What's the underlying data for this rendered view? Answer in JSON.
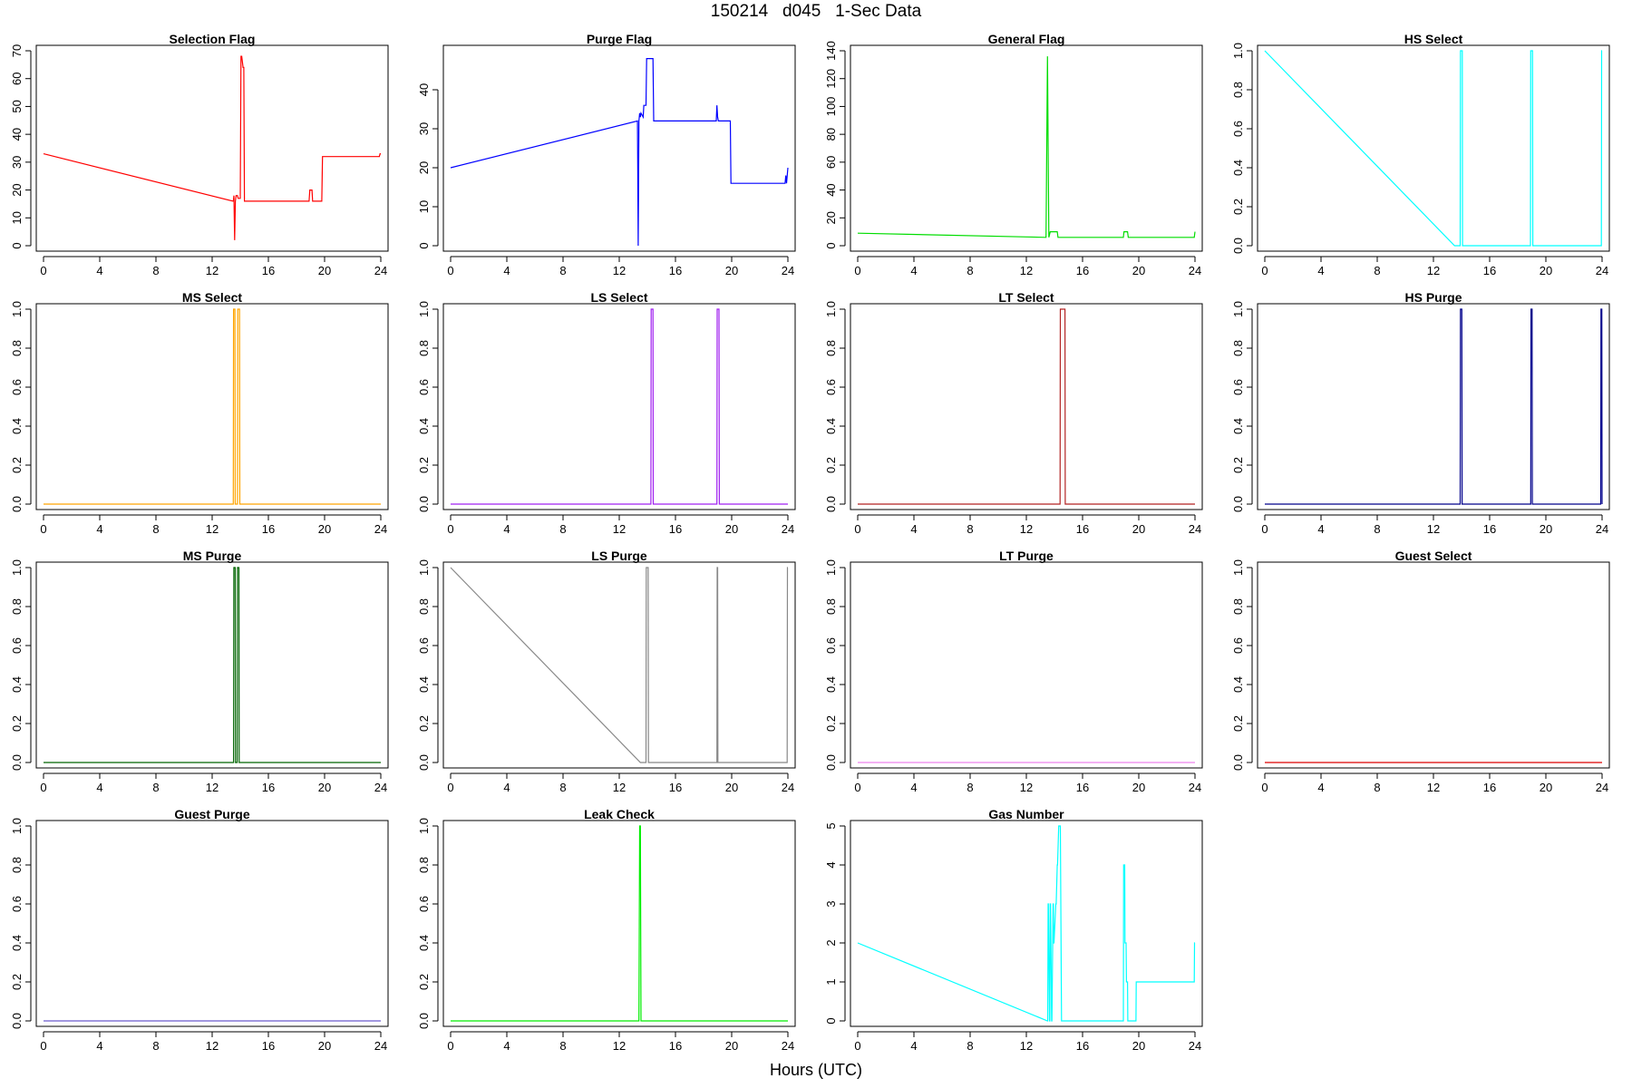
{
  "main_title": "150214   d045   1-Sec Data",
  "xlabel": "Hours (UTC)",
  "chart_data": [
    {
      "type": "line",
      "title": "Selection Flag",
      "color": "#ff0000",
      "xlim": [
        0,
        24
      ],
      "ylim": [
        0,
        70
      ],
      "xticks": [
        0,
        4,
        8,
        12,
        16,
        20,
        24
      ],
      "yticks": [
        0,
        10,
        20,
        30,
        40,
        50,
        60,
        70
      ],
      "x": [
        0,
        13.5,
        13.55,
        13.6,
        13.65,
        13.7,
        13.8,
        13.85,
        14.0,
        14.05,
        14.1,
        14.2,
        14.25,
        14.3,
        18.9,
        18.95,
        19.1,
        19.15,
        19.8,
        19.85,
        23.9,
        23.95,
        24
      ],
      "y": [
        33,
        16,
        18,
        2,
        16,
        18,
        18,
        17,
        17,
        68,
        68,
        64,
        64,
        16,
        16,
        20,
        20,
        16,
        16,
        32,
        32,
        33,
        33
      ]
    },
    {
      "type": "line",
      "title": "Purge Flag",
      "color": "#0000ff",
      "xlim": [
        0,
        24
      ],
      "ylim": [
        0,
        50
      ],
      "xticks": [
        0,
        4,
        8,
        12,
        16,
        20,
        24
      ],
      "yticks": [
        0,
        10,
        20,
        30,
        40
      ],
      "x": [
        0,
        13.3,
        13.35,
        13.4,
        13.45,
        13.5,
        13.55,
        13.7,
        13.75,
        13.8,
        13.9,
        13.95,
        14.0,
        14.05,
        14.4,
        14.45,
        18.9,
        18.95,
        19.0,
        19.05,
        19.1,
        19.9,
        19.95,
        23.8,
        23.85,
        23.9,
        24
      ],
      "y": [
        20,
        32,
        0,
        32,
        34,
        33,
        34,
        33,
        36,
        36,
        36,
        48,
        48,
        48,
        48,
        32,
        32,
        36,
        33,
        32,
        32,
        32,
        16,
        16,
        18,
        16,
        20
      ]
    },
    {
      "type": "line",
      "title": "General Flag",
      "color": "#00dd00",
      "xlim": [
        0,
        24
      ],
      "ylim": [
        0,
        140
      ],
      "xticks": [
        0,
        4,
        8,
        12,
        16,
        20,
        24
      ],
      "yticks": [
        0,
        20,
        40,
        60,
        80,
        100,
        120,
        140
      ],
      "x": [
        0,
        13.4,
        13.5,
        13.6,
        13.7,
        13.75,
        14.2,
        14.25,
        18.9,
        18.95,
        19.2,
        19.25,
        23.95,
        24
      ],
      "y": [
        9,
        6,
        136,
        6,
        10,
        10,
        10,
        6,
        6,
        10,
        10,
        6,
        6,
        10
      ]
    },
    {
      "type": "line",
      "title": "HS Select",
      "color": "#00ffff",
      "xlim": [
        0,
        24
      ],
      "ylim": [
        0,
        1
      ],
      "xticks": [
        0,
        4,
        8,
        12,
        16,
        20,
        24
      ],
      "yticks": [
        0.0,
        0.2,
        0.4,
        0.6,
        0.8,
        1.0
      ],
      "x": [
        0,
        13.5,
        13.9,
        13.92,
        14.05,
        14.07,
        18.9,
        18.92,
        19.05,
        19.07,
        23.95,
        23.97,
        24
      ],
      "y": [
        1,
        0,
        0,
        1,
        1,
        0,
        0,
        1,
        1,
        0,
        0,
        1,
        1
      ]
    },
    {
      "type": "line",
      "title": "MS Select",
      "color": "#ffa500",
      "xlim": [
        0,
        24
      ],
      "ylim": [
        0,
        1
      ],
      "xticks": [
        0,
        4,
        8,
        12,
        16,
        20,
        24
      ],
      "yticks": [
        0.0,
        0.2,
        0.4,
        0.6,
        0.8,
        1.0
      ],
      "x": [
        0,
        13.5,
        13.52,
        13.62,
        13.64,
        13.8,
        13.82,
        13.95,
        13.97,
        24
      ],
      "y": [
        0,
        0,
        1,
        1,
        0,
        0,
        1,
        1,
        0,
        0
      ]
    },
    {
      "type": "line",
      "title": "LS Select",
      "color": "#a020f0",
      "xlim": [
        0,
        24
      ],
      "ylim": [
        0,
        1
      ],
      "xticks": [
        0,
        4,
        8,
        12,
        16,
        20,
        24
      ],
      "yticks": [
        0.0,
        0.2,
        0.4,
        0.6,
        0.8,
        1.0
      ],
      "x": [
        0,
        14.25,
        14.27,
        14.4,
        14.42,
        18.95,
        18.97,
        19.1,
        19.12,
        24
      ],
      "y": [
        0,
        0,
        1,
        1,
        0,
        0,
        1,
        1,
        0,
        0
      ]
    },
    {
      "type": "line",
      "title": "LT Select",
      "color": "#b22222",
      "xlim": [
        0,
        24
      ],
      "ylim": [
        0,
        1
      ],
      "xticks": [
        0,
        4,
        8,
        12,
        16,
        20,
        24
      ],
      "yticks": [
        0.0,
        0.2,
        0.4,
        0.6,
        0.8,
        1.0
      ],
      "x": [
        0,
        14.4,
        14.42,
        14.75,
        14.77,
        24
      ],
      "y": [
        0,
        0,
        1,
        1,
        0,
        0
      ]
    },
    {
      "type": "line",
      "title": "HS Purge",
      "color": "#00008b",
      "xlim": [
        0,
        24
      ],
      "ylim": [
        0,
        1
      ],
      "xticks": [
        0,
        4,
        8,
        12,
        16,
        20,
        24
      ],
      "yticks": [
        0.0,
        0.2,
        0.4,
        0.6,
        0.8,
        1.0
      ],
      "x": [
        0,
        13.9,
        13.92,
        14.02,
        14.04,
        18.92,
        18.94,
        19.02,
        19.04,
        23.9,
        23.92,
        23.98,
        24
      ],
      "y": [
        0,
        0,
        1,
        1,
        0,
        0,
        1,
        1,
        0,
        0,
        1,
        1,
        0
      ]
    },
    {
      "type": "line",
      "title": "MS Purge",
      "color": "#006400",
      "xlim": [
        0,
        24
      ],
      "ylim": [
        0,
        1
      ],
      "xticks": [
        0,
        4,
        8,
        12,
        16,
        20,
        24
      ],
      "yticks": [
        0.0,
        0.2,
        0.4,
        0.6,
        0.8,
        1.0
      ],
      "x": [
        0,
        13.52,
        13.54,
        13.64,
        13.66,
        13.78,
        13.8,
        13.9,
        13.92,
        24
      ],
      "y": [
        0,
        0,
        1,
        1,
        0,
        0,
        1,
        1,
        0,
        0
      ]
    },
    {
      "type": "line",
      "title": "LS Purge",
      "color": "#888888",
      "xlim": [
        0,
        24
      ],
      "ylim": [
        0,
        1
      ],
      "xticks": [
        0,
        4,
        8,
        12,
        16,
        20,
        24
      ],
      "yticks": [
        0.0,
        0.2,
        0.4,
        0.6,
        0.8,
        1.0
      ],
      "x": [
        0,
        13.5,
        13.9,
        13.92,
        14.06,
        14.08,
        18.95,
        18.97,
        19.0,
        19.02,
        23.95,
        23.97,
        24
      ],
      "y": [
        1,
        0,
        0,
        1,
        1,
        0,
        0,
        1,
        1,
        0,
        0,
        1,
        1
      ]
    },
    {
      "type": "line",
      "title": "LT Purge",
      "color": "#ee82ee",
      "xlim": [
        0,
        24
      ],
      "ylim": [
        0,
        1
      ],
      "xticks": [
        0,
        4,
        8,
        12,
        16,
        20,
        24
      ],
      "yticks": [
        0.0,
        0.2,
        0.4,
        0.6,
        0.8,
        1.0
      ],
      "x": [
        0,
        24
      ],
      "y": [
        0,
        0
      ]
    },
    {
      "type": "line",
      "title": "Guest Select",
      "color": "#dd0000",
      "xlim": [
        0,
        24
      ],
      "ylim": [
        0,
        1
      ],
      "xticks": [
        0,
        4,
        8,
        12,
        16,
        20,
        24
      ],
      "yticks": [
        0.0,
        0.2,
        0.4,
        0.6,
        0.8,
        1.0
      ],
      "x": [
        0,
        24
      ],
      "y": [
        0,
        0
      ]
    },
    {
      "type": "line",
      "title": "Guest Purge",
      "color": "#6a5acd",
      "xlim": [
        0,
        24
      ],
      "ylim": [
        0,
        1
      ],
      "xticks": [
        0,
        4,
        8,
        12,
        16,
        20,
        24
      ],
      "yticks": [
        0.0,
        0.2,
        0.4,
        0.6,
        0.8,
        1.0
      ],
      "x": [
        0,
        24
      ],
      "y": [
        0,
        0
      ]
    },
    {
      "type": "line",
      "title": "Leak Check",
      "color": "#00ee00",
      "xlim": [
        0,
        24
      ],
      "ylim": [
        0,
        1
      ],
      "xticks": [
        0,
        4,
        8,
        12,
        16,
        20,
        24
      ],
      "yticks": [
        0.0,
        0.2,
        0.4,
        0.6,
        0.8,
        1.0
      ],
      "x": [
        0,
        13.4,
        13.45,
        13.5,
        13.55,
        24
      ],
      "y": [
        0,
        0,
        1,
        1,
        0,
        0
      ]
    },
    {
      "type": "line",
      "title": "Gas Number",
      "color": "#00ffff",
      "xlim": [
        0,
        24
      ],
      "ylim": [
        0,
        5
      ],
      "xticks": [
        0,
        4,
        8,
        12,
        16,
        20,
        24
      ],
      "yticks": [
        0,
        1,
        2,
        3,
        4,
        5
      ],
      "x": [
        0,
        13.5,
        13.52,
        13.55,
        13.57,
        13.65,
        13.67,
        13.7,
        13.72,
        13.8,
        13.82,
        13.9,
        13.92,
        13.95,
        13.97,
        14.1,
        14.12,
        14.2,
        14.22,
        14.3,
        14.32,
        14.4,
        14.42,
        14.5,
        14.52,
        18.9,
        18.92,
        19.0,
        19.02,
        19.1,
        19.12,
        19.2,
        19.22,
        19.8,
        19.82,
        23.95,
        23.97,
        24
      ],
      "y": [
        2,
        0,
        0,
        3,
        3,
        0,
        0,
        3,
        3,
        0,
        0,
        3,
        3,
        2,
        2,
        3,
        3,
        4,
        4,
        5,
        5,
        5,
        5,
        0,
        0,
        0,
        4,
        4,
        2,
        2,
        1,
        1,
        0,
        0,
        1,
        1,
        2,
        2
      ]
    }
  ]
}
